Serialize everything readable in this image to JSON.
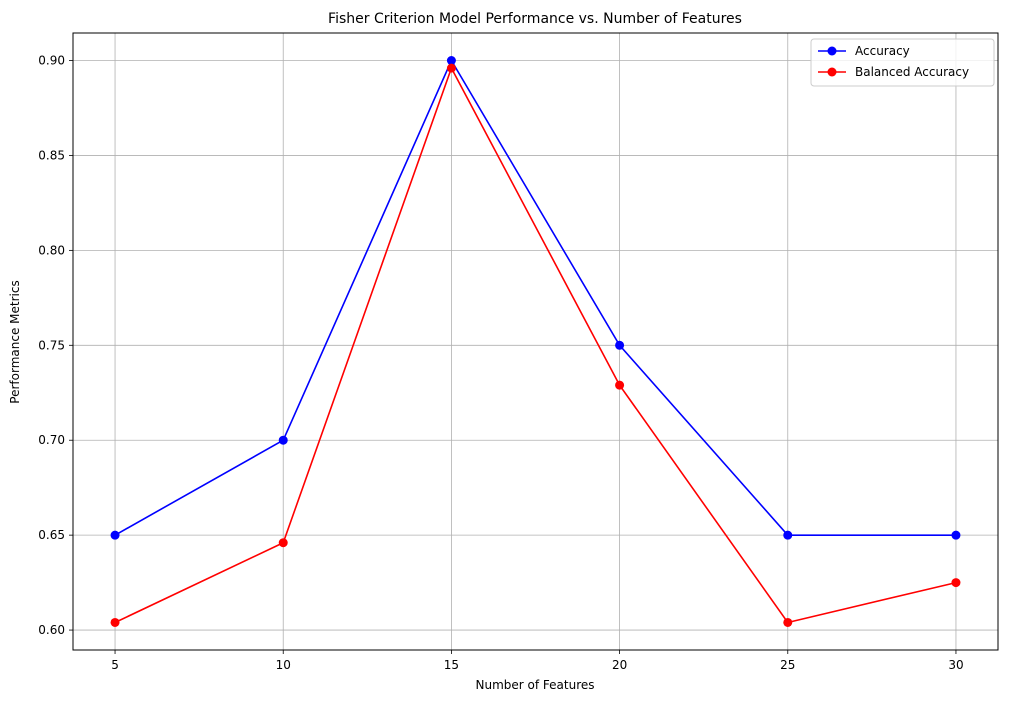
{
  "chart_data": {
    "type": "line",
    "title": "Fisher Criterion Model Performance vs. Number of Features",
    "xlabel": "Number of Features",
    "ylabel": "Performance Metrics",
    "x": [
      5,
      10,
      15,
      20,
      25,
      30
    ],
    "xticks": [
      "5",
      "10",
      "15",
      "20",
      "25",
      "30"
    ],
    "yticks": [
      "0.60",
      "0.65",
      "0.70",
      "0.75",
      "0.80",
      "0.85",
      "0.90"
    ],
    "ytick_values": [
      0.6,
      0.65,
      0.7,
      0.75,
      0.8,
      0.85,
      0.9
    ],
    "xlim": [
      3.75,
      31.25
    ],
    "ylim": [
      0.5895,
      0.9145
    ],
    "grid": true,
    "legend_position": "top-right",
    "series": [
      {
        "name": "Accuracy",
        "color": "#0000ff",
        "marker": "circle",
        "values": [
          0.65,
          0.7,
          0.9,
          0.75,
          0.65,
          0.65
        ]
      },
      {
        "name": "Balanced Accuracy",
        "color": "#ff0000",
        "marker": "circle",
        "values": [
          0.604,
          0.646,
          0.896,
          0.729,
          0.604,
          0.625
        ]
      }
    ]
  }
}
